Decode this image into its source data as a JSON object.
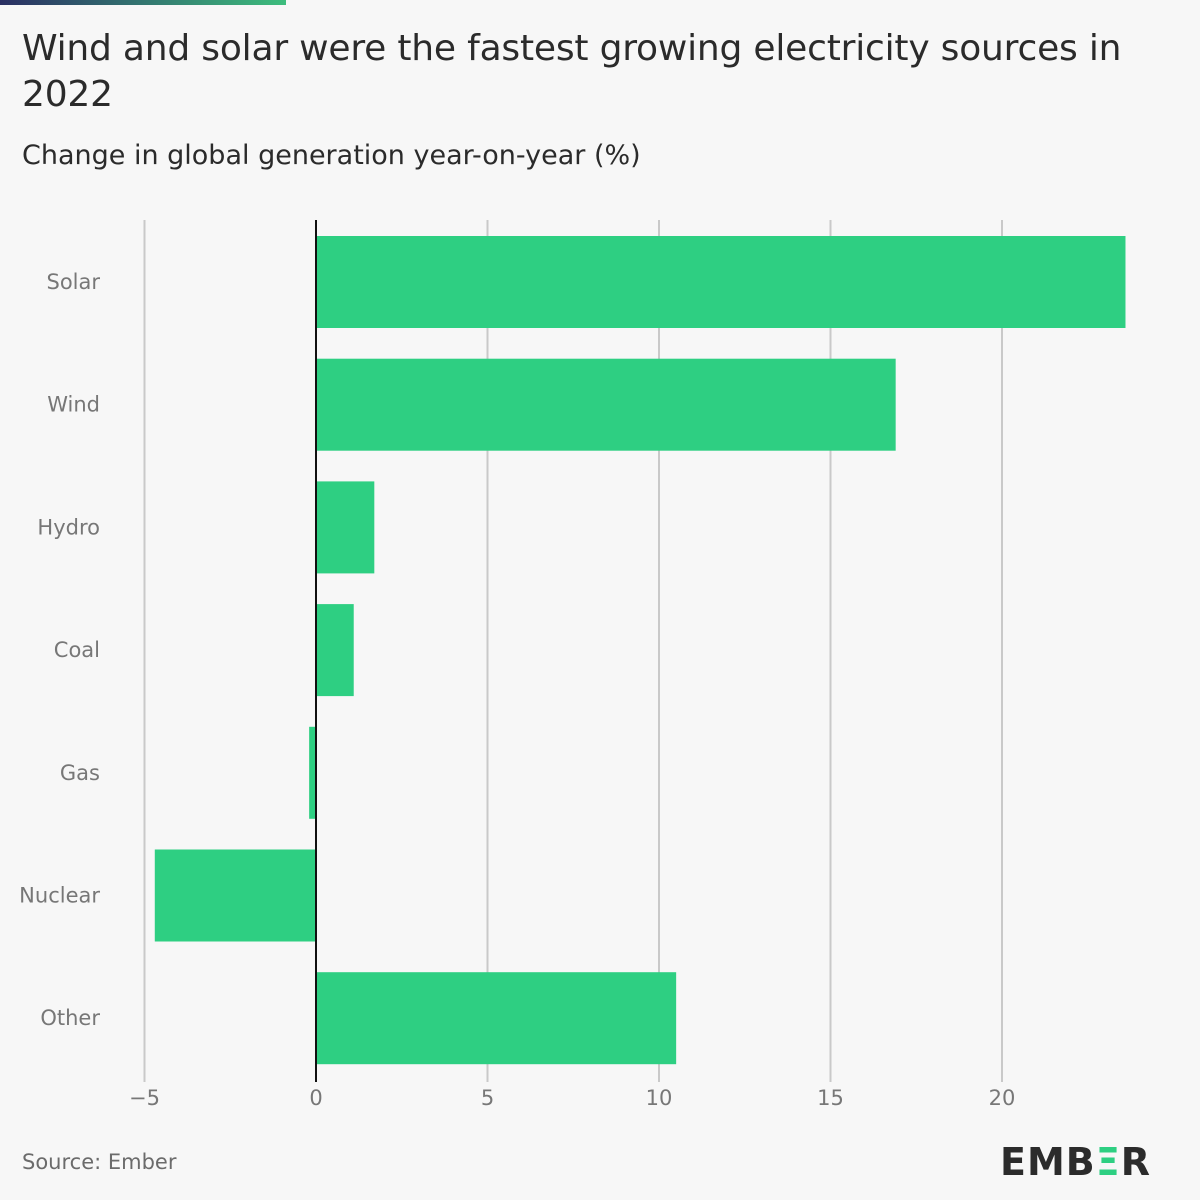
{
  "header": {
    "title": "Wind and solar were the fastest growing electricity sources in 2022",
    "subtitle": "Change in global generation year-on-year (%)"
  },
  "footer": {
    "source": "Source: Ember",
    "logo_parts": [
      "EMB",
      "Ξ",
      "R"
    ]
  },
  "colors": {
    "bar": "#2ecf82",
    "accent_start": "#2a2f63",
    "accent_end": "#3dbd7d",
    "grid": "#c9c9c9",
    "zero_line": "#111111",
    "label": "#777777"
  },
  "chart_data": {
    "type": "bar",
    "orientation": "horizontal",
    "categories": [
      "Solar",
      "Wind",
      "Hydro",
      "Coal",
      "Gas",
      "Nuclear",
      "Other"
    ],
    "values": [
      23.6,
      16.9,
      1.7,
      1.1,
      -0.2,
      -4.7,
      10.5
    ],
    "xlim": [
      -5,
      24
    ],
    "xticks": [
      -5,
      0,
      5,
      10,
      15,
      20
    ],
    "xtick_labels": [
      "−5",
      "0",
      "5",
      "10",
      "15",
      "20"
    ],
    "grid": true
  }
}
